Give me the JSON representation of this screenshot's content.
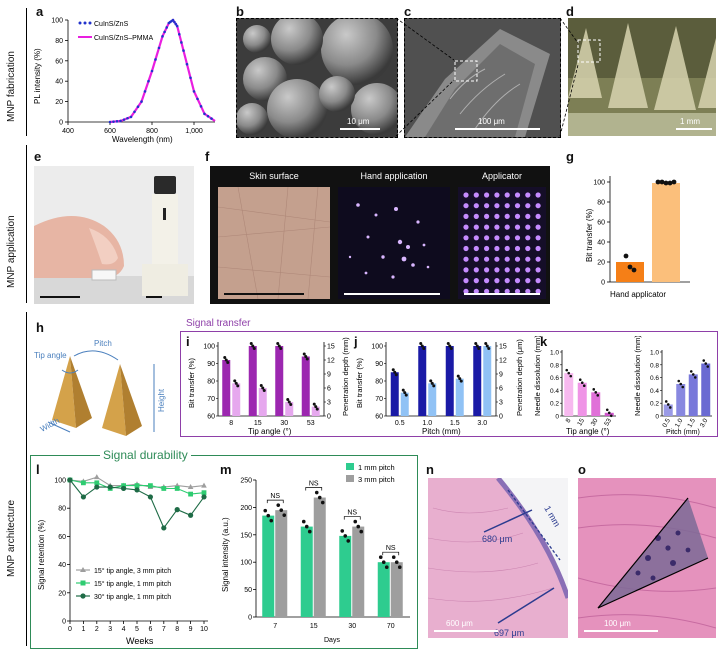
{
  "rows": {
    "fabrication": "MNP fabrication",
    "application": "MNP application",
    "architecture": "MNP architecture"
  },
  "panels": {
    "a": {
      "letter": "a",
      "ylabel": "PL intensity (%)",
      "xlabel": "Wavelength (nm)",
      "legend": [
        "CuInS/ZnS",
        "CuInS/ZnS–PMMA"
      ],
      "yticks": [
        "0",
        "20",
        "40",
        "60",
        "80",
        "100"
      ],
      "xticks": [
        "400",
        "600",
        "800",
        "1,000"
      ]
    },
    "b": {
      "letter": "b",
      "scale": "10 μm"
    },
    "c": {
      "letter": "c",
      "scale": "100 μm"
    },
    "d": {
      "letter": "d",
      "scale": "1 mm"
    },
    "e": {
      "letter": "e"
    },
    "f": {
      "letter": "f",
      "titles": [
        "Skin surface",
        "Hand application",
        "Applicator"
      ]
    },
    "g": {
      "letter": "g",
      "ylabel": "Bit transfer (%)",
      "yticks": [
        "0",
        "20",
        "40",
        "60",
        "80",
        "100"
      ],
      "xlabel": "Hand applicator",
      "colors": {
        "hand": "#f57f17",
        "applicator": "#fbbf7b"
      }
    },
    "h": {
      "letter": "h",
      "labels": {
        "tip": "Tip angle",
        "pitch": "Pitch",
        "height": "Height",
        "width": "Width"
      }
    },
    "signal_transfer": "Signal transfer",
    "i": {
      "letter": "i",
      "ylabel_left": "Bit transfer (%)",
      "ylabel_right": "Penetration depth (mm)",
      "xlabel": "Tip angle (°)",
      "categories": [
        "8",
        "15",
        "30",
        "53"
      ],
      "yticks_left": [
        "60",
        "70",
        "80",
        "90",
        "100"
      ],
      "yticks_right": [
        "0",
        "3",
        "6",
        "9",
        "12",
        "15"
      ],
      "colors": {
        "bit": "#9c27b0",
        "depth": "#e6a8ee"
      }
    },
    "j": {
      "letter": "j",
      "ylabel_left": "Bit transfer (%)",
      "ylabel_right": "Penetration depth (μm)",
      "xlabel": "Pitch (mm)",
      "categories": [
        "0.5",
        "1.0",
        "1.5",
        "3.0"
      ],
      "yticks_left": [
        "60",
        "70",
        "80",
        "90",
        "100"
      ],
      "yticks_right": [
        "0",
        "3",
        "6",
        "9",
        "12",
        "15"
      ],
      "colors": {
        "bit": "#1a1aa6",
        "depth": "#90c2f5"
      }
    },
    "k": {
      "letter": "k",
      "ylabel": "Needle dissolution (mm)",
      "yticks": [
        "0",
        "0.2",
        "0.4",
        "0.6",
        "0.8",
        "1.0"
      ],
      "left_x": [
        "8",
        "15",
        "30",
        "53"
      ],
      "right_x": [
        "0.5",
        "1.0",
        "1.5",
        "3.0"
      ],
      "left_xlabel": "Tip angle (°)",
      "right_xlabel": "Pitch (mm)",
      "colors": {
        "left": [
          "#f7b9ef",
          "#ef94e6",
          "#e070d8",
          "#cc55c9"
        ],
        "right": [
          "#9a9ae6",
          "#8888e0",
          "#7878da",
          "#6a6ad2"
        ]
      }
    },
    "l": {
      "letter": "l",
      "title": "Signal durability",
      "ylabel": "Signal retention (%)",
      "xlabel": "Weeks",
      "yticks": [
        "0",
        "20",
        "40",
        "60",
        "80",
        "100"
      ],
      "xticks": [
        "0",
        "1",
        "2",
        "3",
        "4",
        "5",
        "6",
        "7",
        "8",
        "9",
        "10"
      ],
      "legend": [
        "15° tip angle, 3 mm pitch",
        "15° tip angle, 1 mm pitch",
        "30° tip angle, 1 mm pitch"
      ]
    },
    "m": {
      "letter": "m",
      "ylabel": "Signal intensity (a.u.)",
      "xlabel": "Days",
      "yticks": [
        "0",
        "50",
        "100",
        "150",
        "200",
        "250"
      ],
      "categories": [
        "7",
        "15",
        "30",
        "70"
      ],
      "legend": [
        "1 mm pitch",
        "3 mm pitch"
      ],
      "ns": "NS"
    },
    "n": {
      "letter": "n",
      "labels": [
        "680 μm",
        "697 μm",
        "1 mm"
      ],
      "scale": "600 μm"
    },
    "o": {
      "letter": "o",
      "scale": "100 μm"
    }
  },
  "chart_data": [
    {
      "type": "line",
      "title": "",
      "xlabel": "Wavelength (nm)",
      "ylabel": "PL intensity (%)",
      "xlim": [
        400,
        1100
      ],
      "ylim": [
        0,
        100
      ],
      "series": [
        {
          "name": "CuInS/ZnS",
          "x": [
            600,
            650,
            700,
            750,
            800,
            850,
            880,
            900,
            920,
            950,
            1000,
            1050,
            1100
          ],
          "y": [
            0,
            1,
            5,
            20,
            50,
            84,
            97,
            100,
            94,
            70,
            30,
            8,
            1
          ]
        },
        {
          "name": "CuInS/ZnS–PMMA",
          "x": [
            600,
            650,
            700,
            750,
            800,
            850,
            880,
            900,
            920,
            950,
            1000,
            1050,
            1100
          ],
          "y": [
            0,
            1,
            5,
            20,
            50,
            84,
            97,
            100,
            94,
            70,
            30,
            8,
            1
          ]
        }
      ]
    },
    {
      "type": "bar",
      "title": "",
      "ylabel": "Bit transfer (%)",
      "categories": [
        "Hand",
        "applicator"
      ],
      "values": [
        20,
        99
      ],
      "points": [
        [
          26,
          15,
          12
        ],
        [
          100,
          100,
          99,
          99,
          100
        ]
      ],
      "ylim": [
        0,
        100
      ]
    },
    {
      "type": "bar",
      "title": "",
      "xlabel": "Tip angle (°)",
      "categories": [
        "8",
        "15",
        "30",
        "53"
      ],
      "series": [
        {
          "name": "Bit transfer (%)",
          "values": [
            92,
            100,
            100,
            94
          ]
        },
        {
          "name": "Penetration depth (mm)",
          "values": [
            7,
            6,
            3,
            2
          ]
        }
      ]
    },
    {
      "type": "bar",
      "title": "",
      "xlabel": "Pitch (mm)",
      "categories": [
        "0.5",
        "1.0",
        "1.5",
        "3.0"
      ],
      "series": [
        {
          "name": "Bit transfer (%)",
          "values": [
            85,
            100,
            100,
            100
          ]
        },
        {
          "name": "Penetration depth (μm)",
          "values": [
            5,
            7,
            8,
            15
          ]
        }
      ]
    },
    {
      "type": "bar",
      "title": "",
      "ylabel": "Needle dissolution (mm)",
      "categories": [
        "8",
        "15",
        "30",
        "53"
      ],
      "values": [
        0.67,
        0.52,
        0.37,
        0.05
      ],
      "ylim": [
        0,
        1.0
      ]
    },
    {
      "type": "bar",
      "title": "",
      "ylabel": "Needle dissolution (mm)",
      "xlabel": "Pitch (mm)",
      "categories": [
        "0.5",
        "1.0",
        "1.5",
        "3.0"
      ],
      "values": [
        0.18,
        0.5,
        0.65,
        0.82
      ],
      "ylim": [
        0,
        1.0
      ]
    },
    {
      "type": "line",
      "title": "Signal durability",
      "xlabel": "Weeks",
      "ylabel": "Signal retention (%)",
      "xlim": [
        0,
        10
      ],
      "ylim": [
        0,
        100
      ],
      "series": [
        {
          "name": "15° tip angle, 3 mm pitch",
          "x": [
            0,
            1,
            2,
            3,
            4,
            5,
            6,
            7,
            8,
            9,
            10
          ],
          "y": [
            100,
            99,
            102,
            96,
            96,
            97,
            95,
            95,
            96,
            95,
            96
          ]
        },
        {
          "name": "15° tip angle, 1 mm pitch",
          "x": [
            0,
            1,
            2,
            3,
            4,
            5,
            6,
            7,
            8,
            9,
            10
          ],
          "y": [
            100,
            98,
            98,
            94,
            96,
            96,
            96,
            94,
            94,
            90,
            91
          ]
        },
        {
          "name": "30° tip angle, 1 mm pitch",
          "x": [
            0,
            1,
            2,
            3,
            4,
            5,
            6,
            7,
            8,
            9,
            10
          ],
          "y": [
            100,
            88,
            95,
            95,
            94,
            93,
            88,
            66,
            79,
            75,
            88
          ]
        }
      ]
    },
    {
      "type": "bar",
      "title": "",
      "xlabel": "Days",
      "ylabel": "Signal intensity (a.u.)",
      "categories": [
        "7",
        "15",
        "30",
        "70"
      ],
      "ylim": [
        0,
        250
      ],
      "series": [
        {
          "name": "1 mm pitch",
          "values": [
            185,
            165,
            148,
            100
          ]
        },
        {
          "name": "3 mm pitch",
          "values": [
            195,
            218,
            165,
            100
          ]
        }
      ]
    }
  ]
}
